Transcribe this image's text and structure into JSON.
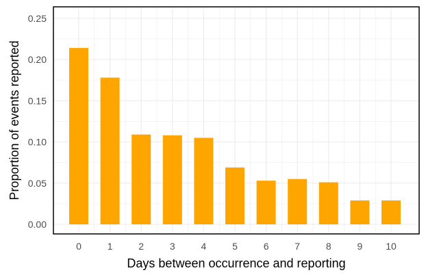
{
  "chart_data": {
    "type": "bar",
    "xlabel": "Days between occurrence and reporting",
    "ylabel": "Proportion of events reported",
    "categories": [
      "0",
      "1",
      "2",
      "3",
      "4",
      "5",
      "6",
      "7",
      "8",
      "9",
      "10"
    ],
    "values": [
      0.214,
      0.178,
      0.109,
      0.108,
      0.105,
      0.069,
      0.053,
      0.055,
      0.051,
      0.029,
      0.029
    ],
    "ylim": [
      0,
      0.26
    ],
    "yticks": [
      "0.00",
      "0.05",
      "0.10",
      "0.15",
      "0.20",
      "0.25"
    ],
    "grid": true,
    "bar_color": "#FFA500",
    "grid_color": "#EBEBEB"
  }
}
